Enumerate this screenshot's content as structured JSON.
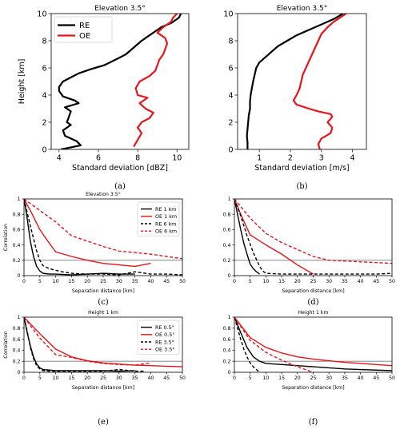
{
  "colors": {
    "re": "#000000",
    "oe": "#e8141b",
    "ref_line": "#777777"
  },
  "chart_data": [
    {
      "id": "a",
      "type": "line",
      "caption": "(a)",
      "title": "Elevation 3.5°",
      "xlabel": "Standard deviation [dBZ]",
      "ylabel": "Height [km]",
      "xlim": [
        3.6,
        10.6
      ],
      "ylim": [
        0,
        10
      ],
      "xticks": [
        4,
        6,
        8,
        10
      ],
      "yticks": [
        0,
        2,
        4,
        6,
        8,
        10
      ],
      "legend": "top-left",
      "series": [
        {
          "name": "RE",
          "color": "#000000",
          "dash": "solid",
          "x": [
            4.1,
            5.1,
            4.9,
            4.3,
            4.2,
            4.6,
            4.4,
            4.5,
            4.6,
            4.3,
            5.0,
            4.8,
            4.2,
            4.0,
            4.0,
            4.2,
            4.6,
            5.0,
            5.6,
            6.3,
            7.0,
            7.4,
            7.8,
            8.2,
            8.6,
            8.9,
            9.2,
            9.7,
            10.1,
            10.2
          ],
          "y": [
            0.0,
            0.3,
            0.6,
            1.0,
            1.4,
            1.8,
            2.0,
            2.4,
            2.8,
            3.1,
            3.4,
            3.6,
            3.9,
            4.3,
            4.6,
            5.0,
            5.3,
            5.6,
            5.9,
            6.2,
            6.7,
            7.0,
            7.5,
            8.0,
            8.4,
            8.7,
            9.0,
            9.3,
            9.7,
            10.0
          ]
        },
        {
          "name": "OE",
          "color": "#e8141b",
          "dash": "solid",
          "x": [
            7.8,
            8.0,
            8.2,
            8.0,
            8.2,
            8.6,
            8.8,
            8.4,
            8.1,
            8.5,
            8.0,
            7.9,
            8.1,
            8.6,
            8.9,
            9.0,
            9.1,
            9.3,
            9.4,
            9.5,
            9.4,
            9.0,
            9.3,
            9.7,
            9.8,
            10.0
          ],
          "y": [
            0.2,
            0.7,
            1.2,
            1.6,
            2.0,
            2.3,
            2.7,
            3.0,
            3.4,
            3.8,
            4.0,
            4.5,
            5.0,
            5.4,
            5.8,
            6.2,
            6.6,
            7.0,
            7.4,
            7.8,
            8.2,
            8.6,
            9.0,
            9.4,
            9.7,
            10.0
          ]
        }
      ]
    },
    {
      "id": "b",
      "type": "line",
      "caption": "(b)",
      "title": "Elevation 3.5°",
      "xlabel": "Standard deviation [m/s]",
      "ylabel": "",
      "xlim": [
        0.3,
        4.45
      ],
      "ylim": [
        0,
        10
      ],
      "xticks": [
        1,
        2,
        3,
        4
      ],
      "yticks": [
        0,
        2,
        4,
        6,
        8,
        10
      ],
      "legend": "",
      "series": [
        {
          "name": "RE",
          "color": "#000000",
          "dash": "solid",
          "x": [
            0.62,
            0.62,
            0.6,
            0.62,
            0.64,
            0.66,
            0.7,
            0.7,
            0.72,
            0.76,
            0.8,
            0.85,
            0.9,
            1.0,
            1.2,
            1.4,
            1.6,
            1.9,
            2.2,
            2.6,
            3.0,
            3.4,
            3.7
          ],
          "y": [
            0.0,
            0.5,
            1.0,
            1.5,
            2.0,
            2.5,
            3.0,
            3.5,
            4.0,
            4.5,
            5.0,
            5.5,
            6.0,
            6.4,
            6.8,
            7.2,
            7.6,
            8.0,
            8.4,
            8.8,
            9.2,
            9.6,
            10.0
          ]
        },
        {
          "name": "OE",
          "color": "#e8141b",
          "dash": "solid",
          "x": [
            2.95,
            2.9,
            3.0,
            3.3,
            3.35,
            3.2,
            3.35,
            3.3,
            2.9,
            2.6,
            2.2,
            2.1,
            2.2,
            2.3,
            2.35,
            2.4,
            2.5,
            2.6,
            2.7,
            2.8,
            2.9,
            3.0,
            3.2,
            3.4,
            3.6,
            3.8
          ],
          "y": [
            0.0,
            0.4,
            0.8,
            1.2,
            1.6,
            2.0,
            2.4,
            2.6,
            2.8,
            3.0,
            3.3,
            3.6,
            4.0,
            4.5,
            5.0,
            5.5,
            6.0,
            6.5,
            7.0,
            7.5,
            8.0,
            8.5,
            9.0,
            9.4,
            9.7,
            10.0
          ]
        }
      ]
    },
    {
      "id": "c",
      "type": "line",
      "caption": "(c)",
      "title": "Elevation 3.5°",
      "xlabel": "Separation distance [km]",
      "ylabel": "Correlation",
      "xlim": [
        0,
        50
      ],
      "ylim": [
        0,
        1
      ],
      "xticks": [
        0,
        5,
        10,
        15,
        20,
        25,
        30,
        35,
        40,
        45,
        50
      ],
      "yticks": [
        0,
        0.2,
        0.4,
        0.6,
        0.8,
        1.0
      ],
      "hline": 0.2,
      "legend": "top-right",
      "series": [
        {
          "name": "RE 1 km",
          "color": "#000000",
          "dash": "solid",
          "x": [
            0,
            1,
            2,
            3,
            4,
            5,
            6,
            8,
            10,
            15,
            20,
            25,
            30,
            35
          ],
          "y": [
            1.0,
            0.75,
            0.45,
            0.25,
            0.12,
            0.06,
            0.03,
            0.02,
            0.02,
            0.01,
            0.02,
            0.03,
            0.02,
            0.02
          ]
        },
        {
          "name": "OE 1 km",
          "color": "#e8141b",
          "dash": "solid",
          "x": [
            0,
            2,
            5,
            7,
            10,
            15,
            20,
            25,
            30,
            35,
            40
          ],
          "y": [
            1.0,
            0.85,
            0.6,
            0.48,
            0.31,
            0.25,
            0.2,
            0.16,
            0.14,
            0.12,
            0.16
          ]
        },
        {
          "name": "RE 6 km",
          "color": "#000000",
          "dash": "dashed",
          "x": [
            0,
            2,
            4,
            5,
            6,
            8,
            10,
            12,
            15,
            20,
            25,
            30,
            35,
            40,
            45,
            50
          ],
          "y": [
            1.0,
            0.65,
            0.32,
            0.2,
            0.13,
            0.09,
            0.07,
            0.05,
            0.03,
            0.02,
            0.02,
            0.01,
            0.05,
            0.02,
            0.02,
            0.01
          ]
        },
        {
          "name": "OE 6 km",
          "color": "#e8141b",
          "dash": "dashed",
          "x": [
            0,
            5,
            10,
            15,
            20,
            25,
            30,
            35,
            40,
            45,
            50
          ],
          "y": [
            1.0,
            0.85,
            0.7,
            0.52,
            0.45,
            0.38,
            0.32,
            0.3,
            0.28,
            0.25,
            0.22
          ]
        }
      ]
    },
    {
      "id": "d",
      "type": "line",
      "caption": "(d)",
      "title": "",
      "xlabel": "Separation distance [km]",
      "ylabel": "",
      "xlim": [
        0,
        50
      ],
      "ylim": [
        0,
        1
      ],
      "xticks": [
        0,
        5,
        10,
        15,
        20,
        25,
        30,
        35,
        40,
        45,
        50
      ],
      "yticks": [
        0,
        0.2,
        0.4,
        0.6,
        0.8,
        1.0
      ],
      "hline": 0.2,
      "legend": "",
      "series": [
        {
          "name": "RE 1 km",
          "color": "#000000",
          "dash": "solid",
          "x": [
            0,
            1,
            2,
            3,
            4,
            5,
            6,
            7,
            8
          ],
          "y": [
            1.0,
            0.8,
            0.6,
            0.42,
            0.28,
            0.15,
            0.09,
            0.05,
            0.02
          ]
        },
        {
          "name": "OE 1 km",
          "color": "#e8141b",
          "dash": "solid",
          "x": [
            0,
            2,
            5,
            7,
            10,
            15,
            20,
            25
          ],
          "y": [
            1.0,
            0.8,
            0.53,
            0.48,
            0.4,
            0.28,
            0.14,
            0.02
          ]
        },
        {
          "name": "RE 6 km",
          "color": "#000000",
          "dash": "dashed",
          "x": [
            0,
            2,
            4,
            6,
            8,
            9,
            10,
            15,
            20,
            25,
            30,
            35,
            40,
            45,
            50
          ],
          "y": [
            1.0,
            0.78,
            0.52,
            0.3,
            0.12,
            0.06,
            0.03,
            0.02,
            0.02,
            0.02,
            0.02,
            0.02,
            0.02,
            0.02,
            0.03
          ]
        },
        {
          "name": "OE 6 km",
          "color": "#e8141b",
          "dash": "dashed",
          "x": [
            0,
            5,
            10,
            15,
            20,
            25,
            30,
            35,
            40,
            45,
            50
          ],
          "y": [
            1.0,
            0.75,
            0.55,
            0.43,
            0.34,
            0.25,
            0.2,
            0.19,
            0.18,
            0.17,
            0.16
          ]
        }
      ]
    },
    {
      "id": "e",
      "type": "line",
      "caption": "(e)",
      "title": "Height 1 km",
      "xlabel": "Separation distance [km]",
      "ylabel": "Correlation",
      "xlim": [
        0,
        50
      ],
      "ylim": [
        0,
        1
      ],
      "xticks": [
        0,
        5,
        10,
        15,
        20,
        25,
        30,
        35,
        40,
        45,
        50
      ],
      "yticks": [
        0,
        0.2,
        0.4,
        0.6,
        0.8,
        1.0
      ],
      "hline": 0.2,
      "legend": "top-right",
      "series": [
        {
          "name": "RE 0.5°",
          "color": "#000000",
          "dash": "solid",
          "x": [
            0,
            1,
            2,
            3,
            4,
            5,
            6,
            8,
            10,
            15,
            20,
            25,
            30,
            35
          ],
          "y": [
            1.0,
            0.72,
            0.48,
            0.28,
            0.15,
            0.08,
            0.05,
            0.04,
            0.03,
            0.03,
            0.03,
            0.03,
            0.02,
            0.03
          ]
        },
        {
          "name": "OE 0.5°",
          "color": "#e8141b",
          "dash": "solid",
          "x": [
            0,
            5,
            10,
            15,
            20,
            25,
            30,
            35,
            40,
            45,
            50
          ],
          "y": [
            1.0,
            0.7,
            0.42,
            0.28,
            0.21,
            0.17,
            0.15,
            0.13,
            0.12,
            0.11,
            0.1
          ]
        },
        {
          "name": "RE 3.5°",
          "color": "#000000",
          "dash": "dashed",
          "x": [
            0,
            1,
            2,
            3,
            4,
            5,
            6,
            8,
            10,
            15,
            20,
            25,
            30,
            35,
            38
          ],
          "y": [
            1.0,
            0.75,
            0.45,
            0.25,
            0.12,
            0.06,
            0.03,
            0.02,
            0.02,
            0.02,
            0.02,
            0.02,
            0.05,
            0.02,
            0.02
          ]
        },
        {
          "name": "OE 3.5°",
          "color": "#e8141b",
          "dash": "dashed",
          "x": [
            0,
            5,
            10,
            15,
            20,
            25,
            30,
            35,
            40
          ],
          "y": [
            1.0,
            0.62,
            0.32,
            0.27,
            0.2,
            0.16,
            0.14,
            0.13,
            0.17
          ]
        }
      ]
    },
    {
      "id": "f",
      "type": "line",
      "caption": "(f)",
      "title": "Height 1 km",
      "xlabel": "Separation distance [km]",
      "ylabel": "",
      "xlim": [
        0,
        50
      ],
      "ylim": [
        0,
        1
      ],
      "xticks": [
        0,
        5,
        10,
        15,
        20,
        25,
        30,
        35,
        40,
        45,
        50
      ],
      "yticks": [
        0,
        0.2,
        0.4,
        0.6,
        0.8,
        1.0
      ],
      "hline": 0.2,
      "legend": "",
      "series": [
        {
          "name": "RE 0.5°",
          "color": "#000000",
          "dash": "solid",
          "x": [
            0,
            2,
            4,
            6,
            8,
            10,
            15,
            20,
            25,
            30,
            35,
            40,
            45,
            50
          ],
          "y": [
            1.0,
            0.72,
            0.45,
            0.28,
            0.2,
            0.16,
            0.14,
            0.12,
            0.1,
            0.08,
            0.06,
            0.05,
            0.04,
            0.03
          ]
        },
        {
          "name": "OE 0.5°",
          "color": "#e8141b",
          "dash": "solid",
          "x": [
            0,
            5,
            10,
            15,
            20,
            25,
            30,
            35,
            40,
            45,
            50
          ],
          "y": [
            1.0,
            0.63,
            0.45,
            0.35,
            0.28,
            0.24,
            0.21,
            0.18,
            0.16,
            0.14,
            0.12
          ]
        },
        {
          "name": "RE 3.5°",
          "color": "#000000",
          "dash": "dashed",
          "x": [
            0,
            1,
            2,
            3,
            4,
            5,
            6,
            7,
            8
          ],
          "y": [
            1.0,
            0.8,
            0.6,
            0.42,
            0.28,
            0.17,
            0.1,
            0.05,
            0.0
          ]
        },
        {
          "name": "OE 3.5°",
          "color": "#e8141b",
          "dash": "dashed",
          "x": [
            0,
            5,
            10,
            15,
            20,
            25
          ],
          "y": [
            1.0,
            0.58,
            0.36,
            0.22,
            0.1,
            0.0
          ]
        }
      ]
    }
  ]
}
